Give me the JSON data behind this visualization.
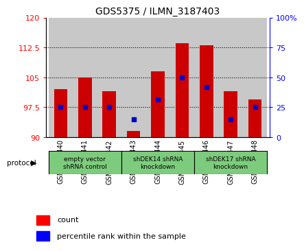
{
  "title": "GDS5375 / ILMN_3187403",
  "samples": [
    "GSM1486440",
    "GSM1486441",
    "GSM1486442",
    "GSM1486443",
    "GSM1486444",
    "GSM1486445",
    "GSM1486446",
    "GSM1486447",
    "GSM1486448"
  ],
  "bar_bottom": 90,
  "bar_tops": [
    102.0,
    105.0,
    101.5,
    91.5,
    106.5,
    113.5,
    113.0,
    101.5,
    99.5
  ],
  "percentile_values": [
    97.5,
    97.5,
    97.5,
    94.5,
    99.5,
    105.0,
    102.5,
    94.5,
    97.5
  ],
  "ylim_left": [
    90,
    120
  ],
  "ylim_right": [
    0,
    100
  ],
  "yticks_left": [
    90,
    97.5,
    105,
    112.5,
    120
  ],
  "yticks_right": [
    0,
    25,
    50,
    75,
    100
  ],
  "bar_color": "#cc0000",
  "dot_color": "#0000cc",
  "protocol_groups": [
    {
      "label": "empty vector\nshRNA control",
      "start": 0,
      "end": 3
    },
    {
      "label": "shDEK14 shRNA\nknockdown",
      "start": 3,
      "end": 6
    },
    {
      "label": "shDEK17 shRNA\nknockdown",
      "start": 6,
      "end": 9
    }
  ],
  "protocol_label": "protocol",
  "legend_count_label": "count",
  "legend_pct_label": "percentile rank within the sample",
  "bar_width": 0.55,
  "col_bg_color": "#c8c8c8",
  "group_bg_color": "#7dcc7d",
  "tick_label_fontsize": 7,
  "title_fontsize": 10
}
